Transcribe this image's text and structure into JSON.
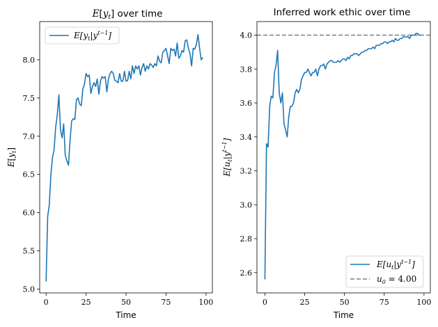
{
  "colors": {
    "series": "#1f77b4",
    "reference": "#7f7f7f",
    "axis": "#000000"
  },
  "chart_data": [
    {
      "type": "line",
      "title": "E[y_t] over time",
      "xlabel": "Time",
      "ylabel": "E[y_t]",
      "xlim": [
        -4,
        104
      ],
      "ylim": [
        4.95,
        8.5
      ],
      "xticks": [
        0,
        25,
        50,
        75,
        100
      ],
      "yticks": [
        5.0,
        5.5,
        6.0,
        6.5,
        7.0,
        7.5,
        8.0
      ],
      "xtick_labels": [
        "0",
        "25",
        "50",
        "75",
        "100"
      ],
      "ytick_labels": [
        "5.0",
        "5.5",
        "6.0",
        "6.5",
        "7.0",
        "7.5",
        "8.0"
      ],
      "legend_position": "top-left",
      "series": [
        {
          "name": "E[y_t|y^{t-1}]",
          "x": [
            0,
            1,
            2,
            3,
            4,
            5,
            6,
            7,
            8,
            9,
            10,
            11,
            12,
            13,
            14,
            15,
            16,
            17,
            18,
            19,
            20,
            21,
            22,
            23,
            24,
            25,
            26,
            27,
            28,
            29,
            30,
            31,
            32,
            33,
            34,
            35,
            36,
            37,
            38,
            39,
            40,
            41,
            42,
            43,
            44,
            45,
            46,
            47,
            48,
            49,
            50,
            51,
            52,
            53,
            54,
            55,
            56,
            57,
            58,
            59,
            60,
            61,
            62,
            63,
            64,
            65,
            66,
            67,
            68,
            69,
            70,
            71,
            72,
            73,
            74,
            75,
            76,
            77,
            78,
            79,
            80,
            81,
            82,
            83,
            84,
            85,
            86,
            87,
            88,
            89,
            90,
            91,
            92,
            93,
            94,
            95,
            96,
            97,
            98
          ],
          "y": [
            5.1,
            5.95,
            6.1,
            6.5,
            6.72,
            6.82,
            7.12,
            7.28,
            7.54,
            7.08,
            6.98,
            7.16,
            6.75,
            6.68,
            6.62,
            6.95,
            7.2,
            7.23,
            7.22,
            7.48,
            7.5,
            7.42,
            7.4,
            7.62,
            7.68,
            7.82,
            7.78,
            7.8,
            7.56,
            7.65,
            7.7,
            7.65,
            7.75,
            7.55,
            7.72,
            7.78,
            7.76,
            7.78,
            7.58,
            7.75,
            7.82,
            7.85,
            7.82,
            7.73,
            7.72,
            7.7,
            7.82,
            7.72,
            7.72,
            7.85,
            7.72,
            7.73,
            7.85,
            7.75,
            7.92,
            7.82,
            7.92,
            7.88,
            7.92,
            7.8,
            7.9,
            7.95,
            7.85,
            7.92,
            7.88,
            7.95,
            7.93,
            7.9,
            7.95,
            7.92,
            8.05,
            7.98,
            7.96,
            8.1,
            8.12,
            8.15,
            8.05,
            7.95,
            8.15,
            8.12,
            8.14,
            8.05,
            8.22,
            8.02,
            8.05,
            8.12,
            8.1,
            8.25,
            8.26,
            8.15,
            8.08,
            7.92,
            8.15,
            8.14,
            8.2,
            8.33,
            8.15,
            8.0,
            8.03
          ]
        }
      ]
    },
    {
      "type": "line",
      "title": "Inferred work ethic over time",
      "xlabel": "Time",
      "ylabel": "E[u_t|y^{t-1}]",
      "xlim": [
        -5,
        104
      ],
      "ylim": [
        2.48,
        4.08
      ],
      "xticks": [
        0,
        25,
        50,
        75,
        100
      ],
      "yticks": [
        2.6,
        2.8,
        3.0,
        3.2,
        3.4,
        3.6,
        3.8,
        4.0
      ],
      "xtick_labels": [
        "0",
        "25",
        "50",
        "75",
        "100"
      ],
      "ytick_labels": [
        "2.6",
        "2.8",
        "3.0",
        "3.2",
        "3.4",
        "3.6",
        "3.8",
        "4.0"
      ],
      "legend_position": "bottom-right",
      "series": [
        {
          "name": "E[u_t|y^{t-1}]",
          "x": [
            0,
            1,
            2,
            3,
            4,
            5,
            6,
            7,
            8,
            9,
            10,
            11,
            12,
            13,
            14,
            15,
            16,
            17,
            18,
            19,
            20,
            21,
            22,
            23,
            24,
            25,
            26,
            27,
            28,
            29,
            30,
            31,
            32,
            33,
            34,
            35,
            36,
            37,
            38,
            39,
            40,
            41,
            42,
            43,
            44,
            45,
            46,
            47,
            48,
            49,
            50,
            51,
            52,
            53,
            54,
            55,
            56,
            57,
            58,
            59,
            60,
            61,
            62,
            63,
            64,
            65,
            66,
            67,
            68,
            69,
            70,
            71,
            72,
            73,
            74,
            75,
            76,
            77,
            78,
            79,
            80,
            81,
            82,
            83,
            84,
            85,
            86,
            87,
            88,
            89,
            90,
            91,
            92,
            93,
            94,
            95,
            96,
            97,
            98
          ],
          "y": [
            2.56,
            3.36,
            3.34,
            3.58,
            3.64,
            3.63,
            3.78,
            3.82,
            3.91,
            3.66,
            3.6,
            3.66,
            3.48,
            3.44,
            3.4,
            3.52,
            3.58,
            3.58,
            3.6,
            3.66,
            3.68,
            3.66,
            3.68,
            3.74,
            3.76,
            3.78,
            3.78,
            3.8,
            3.78,
            3.76,
            3.78,
            3.78,
            3.8,
            3.76,
            3.8,
            3.82,
            3.82,
            3.83,
            3.8,
            3.83,
            3.84,
            3.85,
            3.85,
            3.84,
            3.84,
            3.84,
            3.85,
            3.84,
            3.85,
            3.86,
            3.86,
            3.85,
            3.87,
            3.86,
            3.88,
            3.88,
            3.89,
            3.89,
            3.89,
            3.88,
            3.89,
            3.9,
            3.9,
            3.91,
            3.91,
            3.92,
            3.92,
            3.92,
            3.93,
            3.92,
            3.94,
            3.94,
            3.94,
            3.95,
            3.95,
            3.96,
            3.96,
            3.95,
            3.96,
            3.96,
            3.97,
            3.96,
            3.98,
            3.97,
            3.97,
            3.98,
            3.98,
            3.99,
            3.99,
            3.99,
            3.99,
            3.98,
            4.0,
            4.0,
            4.0,
            4.01,
            4.01,
            4.0,
            4.0
          ]
        },
        {
          "name": "u_0 = 4.00",
          "reference_y": 4.0,
          "style": "dashed"
        }
      ]
    }
  ]
}
